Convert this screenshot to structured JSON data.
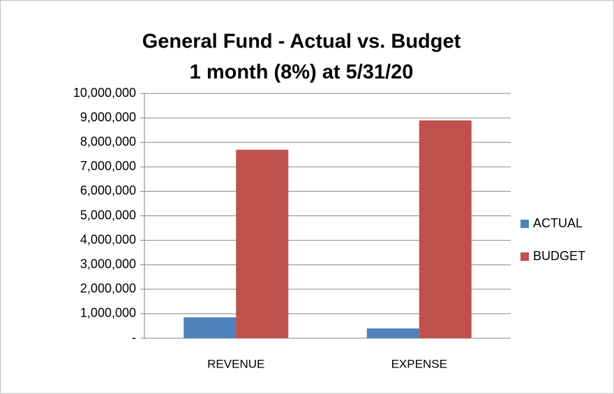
{
  "chart_data": {
    "type": "bar",
    "title": "General Fund - Actual vs. Budget",
    "subtitle": "1 month (8%) at 5/31/20",
    "categories": [
      "REVENUE",
      "EXPENSE"
    ],
    "series": [
      {
        "name": "ACTUAL",
        "color": "#4f81bd",
        "values": [
          850000,
          400000
        ]
      },
      {
        "name": "BUDGET",
        "color": "#c0504d",
        "values": [
          7700000,
          8900000
        ]
      }
    ],
    "ylim": [
      0,
      10000000
    ],
    "yticks": [
      {
        "value": 0,
        "label": "-"
      },
      {
        "value": 1000000,
        "label": "1,000,000"
      },
      {
        "value": 2000000,
        "label": "2,000,000"
      },
      {
        "value": 3000000,
        "label": "3,000,000"
      },
      {
        "value": 4000000,
        "label": "4,000,000"
      },
      {
        "value": 5000000,
        "label": "5,000,000"
      },
      {
        "value": 6000000,
        "label": "6,000,000"
      },
      {
        "value": 7000000,
        "label": "7,000,000"
      },
      {
        "value": 8000000,
        "label": "8,000,000"
      },
      {
        "value": 9000000,
        "label": "9,000,000"
      },
      {
        "value": 10000000,
        "label": "10,000,000"
      }
    ],
    "grid": true,
    "legend": "right"
  }
}
